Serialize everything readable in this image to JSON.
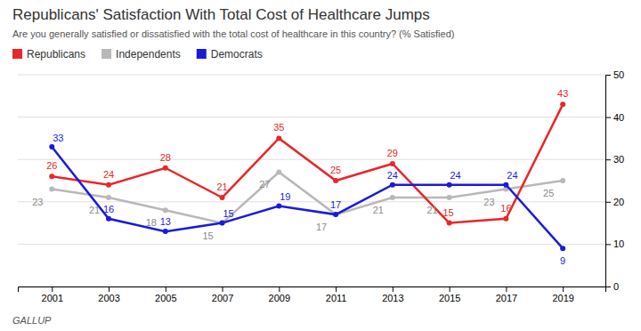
{
  "chart_data": {
    "type": "line",
    "title": "Republicans' Satisfaction With Total Cost of Healthcare Jumps",
    "subtitle": "Are you generally satisfied or dissatisfied with the total cost of healthcare in this country? (% Satisfied)",
    "source": "GALLUP",
    "x": [
      2001,
      2003,
      2005,
      2007,
      2009,
      2011,
      2013,
      2015,
      2017,
      2019
    ],
    "series": [
      {
        "name": "Republicans",
        "color": "#e8272a",
        "values": [
          26,
          24,
          28,
          21,
          35,
          25,
          29,
          15,
          16,
          43
        ]
      },
      {
        "name": "Independents",
        "color": "#b8b8b8",
        "values": [
          23,
          21,
          18,
          15,
          27,
          17,
          21,
          21,
          23,
          25
        ]
      },
      {
        "name": "Democrats",
        "color": "#1a1adc",
        "values": [
          33,
          16,
          13,
          15,
          19,
          17,
          24,
          24,
          24,
          9
        ]
      }
    ],
    "xlim": [
      1999.8,
      2020.5
    ],
    "xticks": [
      2001,
      2003,
      2005,
      2007,
      2009,
      2011,
      2013,
      2015,
      2017,
      2019
    ],
    "ylim": [
      0,
      50
    ],
    "yticks": [
      0,
      10,
      20,
      30,
      40,
      50
    ],
    "grid": true,
    "legend": "upper left",
    "data_labels": true,
    "marker": "circle"
  }
}
